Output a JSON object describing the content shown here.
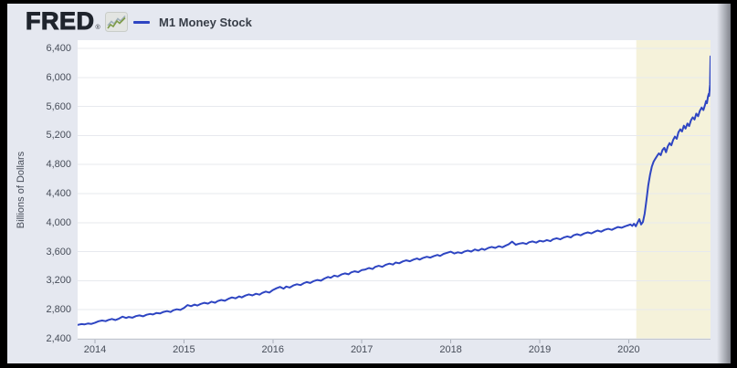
{
  "header": {
    "logo_text": "FRED",
    "logo_reg": "®",
    "legend_label": "M1 Money Stock"
  },
  "chart_data": {
    "type": "line",
    "title": "M1 Money Stock",
    "xlabel": "",
    "ylabel": "Billions of Dollars",
    "legend_position": "top-left",
    "grid": true,
    "x_ticks": [
      2014,
      2015,
      2016,
      2017,
      2018,
      2019,
      2020
    ],
    "x_tick_labels": [
      "2014",
      "2015",
      "2016",
      "2017",
      "2018",
      "2019",
      "2020"
    ],
    "y_ticks": [
      2400,
      2800,
      3200,
      3600,
      4000,
      4400,
      4800,
      5200,
      5600,
      6000,
      6400
    ],
    "y_tick_labels": [
      "2,400",
      "2,800",
      "3,200",
      "3,600",
      "4,000",
      "4,400",
      "4,800",
      "5,200",
      "5,600",
      "6,000",
      "6,400"
    ],
    "xlim": [
      2013.805,
      2020.92
    ],
    "ylim": [
      2400,
      6513
    ],
    "colors": {
      "line": "#2e45c2",
      "recession_band": "#f5f2da",
      "background": "#e5e8f0",
      "plot_background": "#ffffff",
      "gridline": "#e7e9ee",
      "axis_line": "#c2c6cf",
      "tick_mark": "#a8adb8"
    },
    "recession_band": {
      "start": 2020.085,
      "end": 2020.92
    },
    "series": [
      {
        "name": "M1 Money Stock",
        "color": "#2e45c2",
        "points": [
          [
            2013.81,
            2592
          ],
          [
            2013.85,
            2603
          ],
          [
            2013.88,
            2598
          ],
          [
            2013.92,
            2610
          ],
          [
            2013.96,
            2605
          ],
          [
            2014.0,
            2622
          ],
          [
            2014.04,
            2641
          ],
          [
            2014.08,
            2652
          ],
          [
            2014.12,
            2643
          ],
          [
            2014.15,
            2659
          ],
          [
            2014.19,
            2673
          ],
          [
            2014.23,
            2658
          ],
          [
            2014.27,
            2678
          ],
          [
            2014.31,
            2704
          ],
          [
            2014.35,
            2687
          ],
          [
            2014.38,
            2701
          ],
          [
            2014.42,
            2690
          ],
          [
            2014.46,
            2712
          ],
          [
            2014.5,
            2722
          ],
          [
            2014.54,
            2709
          ],
          [
            2014.58,
            2731
          ],
          [
            2014.62,
            2742
          ],
          [
            2014.65,
            2735
          ],
          [
            2014.69,
            2755
          ],
          [
            2014.73,
            2748
          ],
          [
            2014.77,
            2770
          ],
          [
            2014.81,
            2781
          ],
          [
            2014.85,
            2768
          ],
          [
            2014.88,
            2793
          ],
          [
            2014.92,
            2806
          ],
          [
            2014.96,
            2797
          ],
          [
            2015.0,
            2824
          ],
          [
            2015.04,
            2864
          ],
          [
            2015.08,
            2849
          ],
          [
            2015.12,
            2870
          ],
          [
            2015.15,
            2858
          ],
          [
            2015.19,
            2881
          ],
          [
            2015.23,
            2895
          ],
          [
            2015.27,
            2884
          ],
          [
            2015.31,
            2911
          ],
          [
            2015.35,
            2897
          ],
          [
            2015.38,
            2920
          ],
          [
            2015.42,
            2935
          ],
          [
            2015.46,
            2923
          ],
          [
            2015.5,
            2951
          ],
          [
            2015.54,
            2970
          ],
          [
            2015.58,
            2957
          ],
          [
            2015.62,
            2983
          ],
          [
            2015.65,
            2970
          ],
          [
            2015.69,
            2995
          ],
          [
            2015.73,
            3011
          ],
          [
            2015.77,
            2998
          ],
          [
            2015.81,
            3020
          ],
          [
            2015.85,
            3008
          ],
          [
            2015.88,
            3031
          ],
          [
            2015.92,
            3050
          ],
          [
            2015.96,
            3037
          ],
          [
            2016.0,
            3072
          ],
          [
            2016.04,
            3095
          ],
          [
            2016.08,
            3115
          ],
          [
            2016.12,
            3091
          ],
          [
            2016.15,
            3120
          ],
          [
            2016.19,
            3106
          ],
          [
            2016.23,
            3135
          ],
          [
            2016.27,
            3151
          ],
          [
            2016.31,
            3140
          ],
          [
            2016.35,
            3167
          ],
          [
            2016.38,
            3181
          ],
          [
            2016.42,
            3168
          ],
          [
            2016.46,
            3195
          ],
          [
            2016.5,
            3210
          ],
          [
            2016.54,
            3200
          ],
          [
            2016.58,
            3230
          ],
          [
            2016.62,
            3251
          ],
          [
            2016.65,
            3240
          ],
          [
            2016.69,
            3270
          ],
          [
            2016.73,
            3258
          ],
          [
            2016.77,
            3286
          ],
          [
            2016.81,
            3300
          ],
          [
            2016.85,
            3288
          ],
          [
            2016.88,
            3315
          ],
          [
            2016.92,
            3330
          ],
          [
            2016.96,
            3318
          ],
          [
            2017.0,
            3347
          ],
          [
            2017.04,
            3355
          ],
          [
            2017.08,
            3375
          ],
          [
            2017.12,
            3361
          ],
          [
            2017.15,
            3390
          ],
          [
            2017.19,
            3405
          ],
          [
            2017.23,
            3391
          ],
          [
            2017.27,
            3420
          ],
          [
            2017.31,
            3435
          ],
          [
            2017.35,
            3422
          ],
          [
            2017.38,
            3450
          ],
          [
            2017.42,
            3440
          ],
          [
            2017.46,
            3465
          ],
          [
            2017.5,
            3480
          ],
          [
            2017.54,
            3468
          ],
          [
            2017.58,
            3491
          ],
          [
            2017.62,
            3505
          ],
          [
            2017.65,
            3491
          ],
          [
            2017.69,
            3515
          ],
          [
            2017.73,
            3530
          ],
          [
            2017.77,
            3518
          ],
          [
            2017.81,
            3540
          ],
          [
            2017.85,
            3555
          ],
          [
            2017.88,
            3541
          ],
          [
            2017.92,
            3570
          ],
          [
            2017.96,
            3585
          ],
          [
            2018.0,
            3600
          ],
          [
            2018.04,
            3575
          ],
          [
            2018.08,
            3591
          ],
          [
            2018.12,
            3580
          ],
          [
            2018.15,
            3600
          ],
          [
            2018.19,
            3615
          ],
          [
            2018.23,
            3601
          ],
          [
            2018.27,
            3630
          ],
          [
            2018.31,
            3615
          ],
          [
            2018.35,
            3640
          ],
          [
            2018.38,
            3625
          ],
          [
            2018.42,
            3650
          ],
          [
            2018.46,
            3665
          ],
          [
            2018.5,
            3651
          ],
          [
            2018.54,
            3675
          ],
          [
            2018.58,
            3660
          ],
          [
            2018.62,
            3685
          ],
          [
            2018.65,
            3700
          ],
          [
            2018.69,
            3738
          ],
          [
            2018.73,
            3695
          ],
          [
            2018.77,
            3711
          ],
          [
            2018.81,
            3720
          ],
          [
            2018.85,
            3705
          ],
          [
            2018.88,
            3730
          ],
          [
            2018.92,
            3741
          ],
          [
            2018.96,
            3725
          ],
          [
            2019.0,
            3750
          ],
          [
            2019.04,
            3740
          ],
          [
            2019.08,
            3760
          ],
          [
            2019.12,
            3745
          ],
          [
            2019.15,
            3770
          ],
          [
            2019.19,
            3785
          ],
          [
            2019.23,
            3770
          ],
          [
            2019.27,
            3795
          ],
          [
            2019.31,
            3810
          ],
          [
            2019.35,
            3796
          ],
          [
            2019.38,
            3825
          ],
          [
            2019.42,
            3840
          ],
          [
            2019.46,
            3825
          ],
          [
            2019.5,
            3850
          ],
          [
            2019.54,
            3865
          ],
          [
            2019.58,
            3851
          ],
          [
            2019.62,
            3875
          ],
          [
            2019.65,
            3890
          ],
          [
            2019.69,
            3876
          ],
          [
            2019.73,
            3900
          ],
          [
            2019.77,
            3915
          ],
          [
            2019.81,
            3901
          ],
          [
            2019.85,
            3925
          ],
          [
            2019.88,
            3940
          ],
          [
            2019.92,
            3930
          ],
          [
            2019.96,
            3950
          ],
          [
            2020.0,
            3966
          ],
          [
            2020.02,
            3975
          ],
          [
            2020.04,
            3955
          ],
          [
            2020.06,
            3985
          ],
          [
            2020.08,
            3950
          ],
          [
            2020.1,
            4000
          ],
          [
            2020.12,
            4048
          ],
          [
            2020.14,
            3975
          ],
          [
            2020.16,
            4010
          ],
          [
            2020.18,
            4125
          ],
          [
            2020.2,
            4315
          ],
          [
            2020.22,
            4510
          ],
          [
            2020.24,
            4660
          ],
          [
            2020.26,
            4770
          ],
          [
            2020.28,
            4840
          ],
          [
            2020.3,
            4880
          ],
          [
            2020.32,
            4920
          ],
          [
            2020.34,
            4955
          ],
          [
            2020.36,
            4930
          ],
          [
            2020.38,
            5000
          ],
          [
            2020.4,
            5030
          ],
          [
            2020.42,
            4970
          ],
          [
            2020.44,
            5050
          ],
          [
            2020.46,
            5095
          ],
          [
            2020.48,
            5065
          ],
          [
            2020.5,
            5140
          ],
          [
            2020.52,
            5185
          ],
          [
            2020.54,
            5155
          ],
          [
            2020.56,
            5245
          ],
          [
            2020.58,
            5285
          ],
          [
            2020.6,
            5255
          ],
          [
            2020.62,
            5335
          ],
          [
            2020.64,
            5295
          ],
          [
            2020.66,
            5365
          ],
          [
            2020.68,
            5330
          ],
          [
            2020.7,
            5410
          ],
          [
            2020.72,
            5450
          ],
          [
            2020.74,
            5420
          ],
          [
            2020.76,
            5500
          ],
          [
            2020.78,
            5465
          ],
          [
            2020.8,
            5540
          ],
          [
            2020.82,
            5585
          ],
          [
            2020.84,
            5550
          ],
          [
            2020.86,
            5630
          ],
          [
            2020.87,
            5675
          ],
          [
            2020.88,
            5645
          ],
          [
            2020.89,
            5730
          ],
          [
            2020.9,
            5775
          ],
          [
            2020.905,
            5745
          ],
          [
            2020.91,
            5830
          ],
          [
            2020.915,
            5900
          ],
          [
            2020.92,
            6290
          ]
        ]
      }
    ]
  }
}
